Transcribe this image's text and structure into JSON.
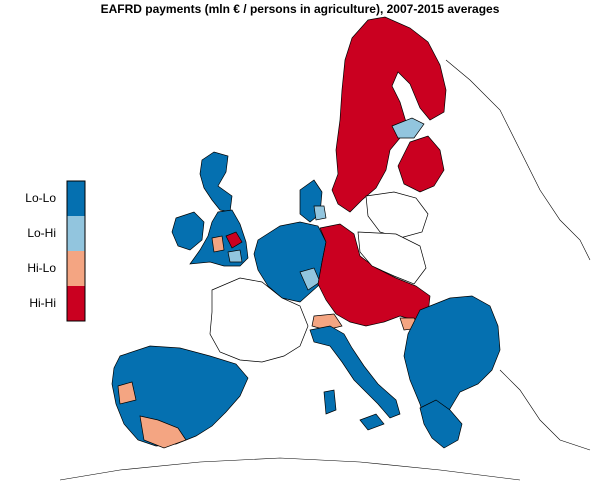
{
  "title": "EAFRD payments (mln € / persons in agriculture), 2007-2015 averages",
  "legend": {
    "items": [
      {
        "label": "Lo-Lo",
        "color": "#0570b0"
      },
      {
        "label": "Lo-Hi",
        "color": "#92c5de"
      },
      {
        "label": "Hi-Lo",
        "color": "#f4a582"
      },
      {
        "label": "Hi-Hi",
        "color": "#ca0020"
      }
    ]
  },
  "colors": {
    "lo_lo": "#0570b0",
    "lo_hi": "#92c5de",
    "hi_lo": "#f4a582",
    "hi_hi": "#ca0020",
    "not_significant": "#ffffff",
    "border": "#000000"
  }
}
